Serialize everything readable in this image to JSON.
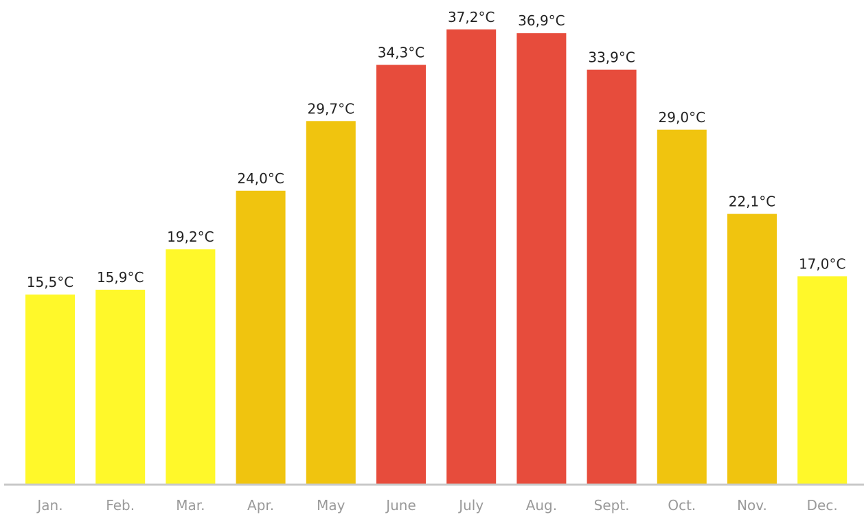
{
  "colors": {
    "low": "#fff82a",
    "mid": "#f0c40f",
    "high": "#e74c3c",
    "axis": "#c8c8c8",
    "value_text": "#222222",
    "tick_text": "#9a9a9a"
  },
  "chart_data": {
    "type": "bar",
    "title": "",
    "xlabel": "",
    "ylabel": "",
    "categories": [
      "Jan.",
      "Feb.",
      "Mar.",
      "Apr.",
      "May",
      "June",
      "July",
      "Aug.",
      "Sept.",
      "Oct.",
      "Nov.",
      "Dec."
    ],
    "values": [
      15.5,
      15.9,
      19.2,
      24.0,
      29.7,
      34.3,
      37.2,
      36.9,
      33.9,
      29.0,
      22.1,
      17.0
    ],
    "value_labels": [
      "15,5°C",
      "15,9°C",
      "19,2°C",
      "24,0°C",
      "29,7°C",
      "34,3°C",
      "37,2°C",
      "36,9°C",
      "33,9°C",
      "29,0°C",
      "22,1°C",
      "17,0°C"
    ],
    "bar_color_levels": [
      "low",
      "low",
      "low",
      "mid",
      "mid",
      "high",
      "high",
      "high",
      "high",
      "mid",
      "mid",
      "low"
    ],
    "ylim": [
      0,
      40
    ],
    "grid": false,
    "legend": "none"
  }
}
